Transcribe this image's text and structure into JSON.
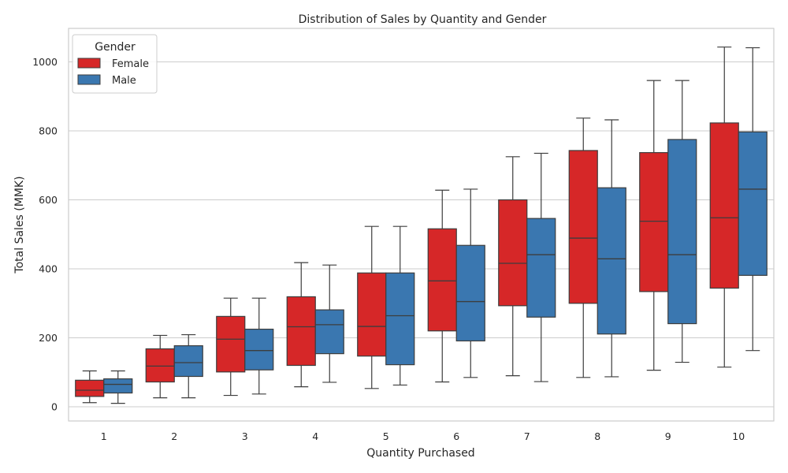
{
  "chart_data": {
    "type": "box",
    "title": "Distribution of Sales by Quantity and Gender",
    "xlabel": "Quantity Purchased",
    "ylabel": "Total Sales (MMK)",
    "ylim": [
      -40,
      1100
    ],
    "yticks": [
      0,
      200,
      400,
      600,
      800,
      1000
    ],
    "categories": [
      "1",
      "2",
      "3",
      "4",
      "5",
      "6",
      "7",
      "8",
      "9",
      "10"
    ],
    "grid": true,
    "legend": {
      "title": "Gender",
      "position": "top-left"
    },
    "series": [
      {
        "name": "Female",
        "color": "#d62728",
        "boxes": [
          {
            "min": 12,
            "q1": 30,
            "median": 48,
            "q3": 77,
            "max": 104
          },
          {
            "min": 26,
            "q1": 72,
            "median": 118,
            "q3": 168,
            "max": 207
          },
          {
            "min": 33,
            "q1": 101,
            "median": 196,
            "q3": 262,
            "max": 315
          },
          {
            "min": 58,
            "q1": 120,
            "median": 232,
            "q3": 319,
            "max": 418
          },
          {
            "min": 53,
            "q1": 147,
            "median": 233,
            "q3": 388,
            "max": 523
          },
          {
            "min": 72,
            "q1": 220,
            "median": 365,
            "q3": 516,
            "max": 628
          },
          {
            "min": 90,
            "q1": 293,
            "median": 416,
            "q3": 600,
            "max": 725
          },
          {
            "min": 85,
            "q1": 300,
            "median": 489,
            "q3": 743,
            "max": 837
          },
          {
            "min": 106,
            "q1": 334,
            "median": 538,
            "q3": 737,
            "max": 946
          },
          {
            "min": 115,
            "q1": 344,
            "median": 548,
            "q3": 823,
            "max": 1043
          }
        ]
      },
      {
        "name": "Male",
        "color": "#3a77b0",
        "boxes": [
          {
            "min": 10,
            "q1": 40,
            "median": 65,
            "q3": 81,
            "max": 104
          },
          {
            "min": 26,
            "q1": 88,
            "median": 128,
            "q3": 177,
            "max": 209
          },
          {
            "min": 37,
            "q1": 107,
            "median": 163,
            "q3": 225,
            "max": 315
          },
          {
            "min": 71,
            "q1": 154,
            "median": 238,
            "q3": 281,
            "max": 411
          },
          {
            "min": 63,
            "q1": 122,
            "median": 264,
            "q3": 388,
            "max": 523
          },
          {
            "min": 85,
            "q1": 191,
            "median": 305,
            "q3": 468,
            "max": 631
          },
          {
            "min": 73,
            "q1": 260,
            "median": 441,
            "q3": 546,
            "max": 735
          },
          {
            "min": 87,
            "q1": 211,
            "median": 429,
            "q3": 635,
            "max": 832
          },
          {
            "min": 129,
            "q1": 241,
            "median": 441,
            "q3": 775,
            "max": 946
          },
          {
            "min": 163,
            "q1": 381,
            "median": 631,
            "q3": 797,
            "max": 1041
          }
        ]
      }
    ]
  }
}
